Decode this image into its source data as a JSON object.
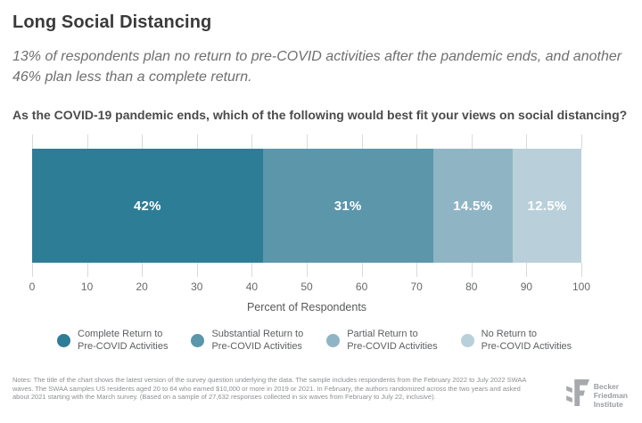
{
  "header": {
    "title": "Long Social Distancing",
    "subtitle": "13% of respondents plan no return to pre-COVID activities after the pandemic ends, and another 46% plan less than a complete return.",
    "question": "As the COVID-19 pandemic ends, which of the following would best fit your views on social distancing?"
  },
  "chart_data": {
    "type": "bar",
    "variant": "horizontal-stacked",
    "title": "Long Social Distancing",
    "xlabel": "Percent of Respondents",
    "xlim": [
      0,
      100
    ],
    "xticks": [
      0,
      10,
      20,
      30,
      40,
      50,
      60,
      70,
      80,
      90,
      100
    ],
    "grid": "tick-marks-above-and-below-bar",
    "legend_position": "bottom",
    "categories": [
      "Complete Return to Pre-COVID Activities",
      "Substantial Return to Pre-COVID Activities",
      "Partial Return to Pre-COVID Activities",
      "No Return to Pre-COVID Activities"
    ],
    "values": [
      42,
      31,
      14.5,
      12.5
    ],
    "segments": [
      {
        "label": "Complete Return to Pre-COVID Activities",
        "value": 42,
        "display": "42%",
        "color": "#2e7d96"
      },
      {
        "label": "Substantial Return to Pre-COVID Activities",
        "value": 31,
        "display": "31%",
        "color": "#5b96ab"
      },
      {
        "label": "Partial Return to Pre-COVID Activities",
        "value": 14.5,
        "display": "14.5%",
        "color": "#8fb5c5"
      },
      {
        "label": "No Return to Pre-COVID Activities",
        "value": 12.5,
        "display": "12.5%",
        "color": "#b9d0db"
      }
    ],
    "legend": [
      {
        "lines": [
          "Complete Return to",
          "Pre-COVID Activities"
        ],
        "color": "#2e7d96"
      },
      {
        "lines": [
          "Substantial Return to",
          "Pre-COVID Activities"
        ],
        "color": "#5b96ab"
      },
      {
        "lines": [
          "Partial Return to",
          "Pre-COVID Activities"
        ],
        "color": "#8fb5c5"
      },
      {
        "lines": [
          "No Return to",
          "Pre-COVID Activities"
        ],
        "color": "#b9d0db"
      }
    ]
  },
  "footer": {
    "notes": "Notes: The title of the chart shows the latest version of the survey question underlying the data. The sample includes respondents from the February 2022 to July 2022 SWAA waves. The SWAA samples US residents aged 20 to 64 who earned $10,000 or more in 2019 or 2021. In February, the authors randomized across the two years and asked about 2021 starting with the March survey. (Based on a sample of 27,632 responses collected in six waves from February to July 22, inclusive).",
    "logo": {
      "lines": [
        "Becker",
        "Friedman",
        "Institute"
      ]
    }
  }
}
